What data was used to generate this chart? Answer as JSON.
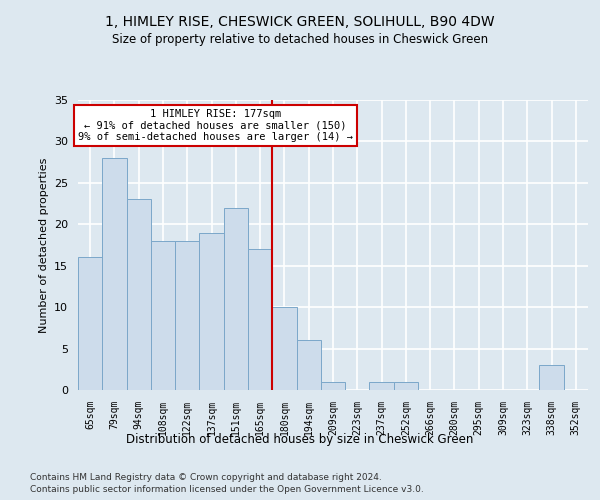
{
  "title": "1, HIMLEY RISE, CHESWICK GREEN, SOLIHULL, B90 4DW",
  "subtitle": "Size of property relative to detached houses in Cheswick Green",
  "xlabel": "Distribution of detached houses by size in Cheswick Green",
  "ylabel": "Number of detached properties",
  "categories": [
    "65sqm",
    "79sqm",
    "94sqm",
    "108sqm",
    "122sqm",
    "137sqm",
    "151sqm",
    "165sqm",
    "180sqm",
    "194sqm",
    "209sqm",
    "223sqm",
    "237sqm",
    "252sqm",
    "266sqm",
    "280sqm",
    "295sqm",
    "309sqm",
    "323sqm",
    "338sqm",
    "352sqm"
  ],
  "values": [
    16,
    28,
    23,
    18,
    18,
    19,
    22,
    17,
    10,
    6,
    1,
    0,
    1,
    1,
    0,
    0,
    0,
    0,
    0,
    3,
    0
  ],
  "bar_color": "#cddceb",
  "bar_edge_color": "#7ba7c9",
  "background_color": "#dde8f0",
  "plot_bg_color": "#dde8f0",
  "grid_color": "#ffffff",
  "red_line_index": 8,
  "annotation_title": "1 HIMLEY RISE: 177sqm",
  "annotation_line1": "← 91% of detached houses are smaller (150)",
  "annotation_line2": "9% of semi-detached houses are larger (14) →",
  "annotation_box_color": "#ffffff",
  "annotation_border_color": "#cc0000",
  "red_line_color": "#cc0000",
  "footer_line1": "Contains HM Land Registry data © Crown copyright and database right 2024.",
  "footer_line2": "Contains public sector information licensed under the Open Government Licence v3.0.",
  "ylim": [
    0,
    35
  ],
  "yticks": [
    0,
    5,
    10,
    15,
    20,
    25,
    30,
    35
  ]
}
